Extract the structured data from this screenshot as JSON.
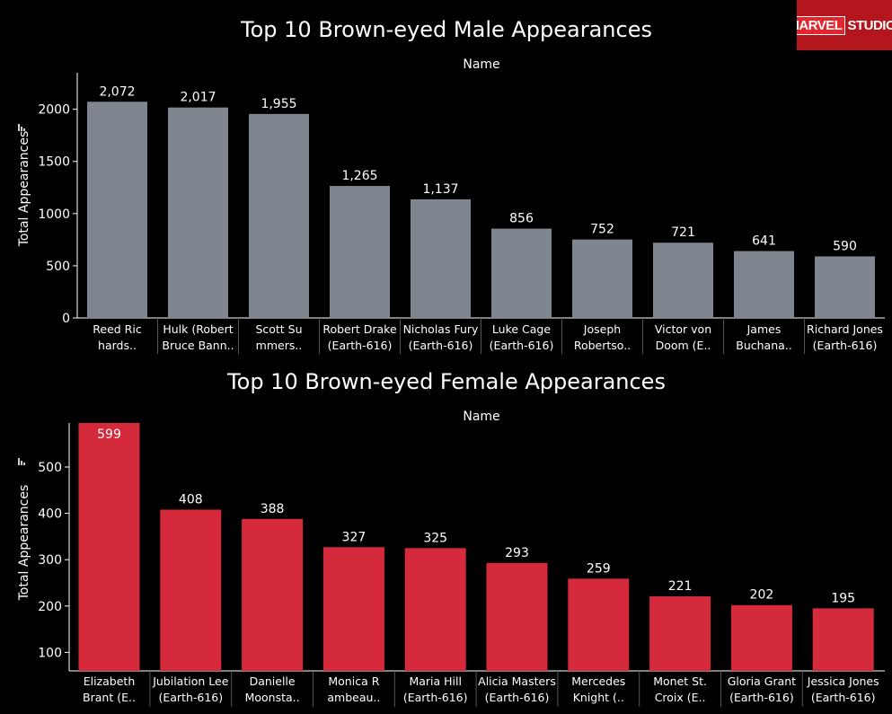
{
  "logo": {
    "word1": "MARVEL",
    "word2": "STUDIOS"
  },
  "chart_data": [
    {
      "type": "bar",
      "title": "Top 10 Brown-eyed Male Appearances",
      "column_header": "Name",
      "ylabel": "Total Appearances",
      "ylim": [
        0,
        2350
      ],
      "yticks": [
        0,
        500,
        1000,
        1500,
        2000
      ],
      "color": "#7f8690",
      "categories": [
        [
          "Reed Ric",
          "hards.."
        ],
        [
          "Hulk (Robert",
          "Bruce Bann.."
        ],
        [
          "Scott Su",
          "mmers.."
        ],
        [
          "Robert Drake",
          "(Earth-616)"
        ],
        [
          "Nicholas Fury",
          "(Earth-616)"
        ],
        [
          "Luke Cage",
          "(Earth-616)"
        ],
        [
          "Joseph",
          "Robertso.."
        ],
        [
          "Victor von",
          "Doom (E.."
        ],
        [
          "James",
          "Buchana.."
        ],
        [
          "Richard Jones",
          "(Earth-616)"
        ]
      ],
      "values": [
        2072,
        2017,
        1955,
        1265,
        1137,
        856,
        752,
        721,
        641,
        590
      ],
      "value_labels": [
        "2,072",
        "2,017",
        "1,955",
        "1,265",
        "1,137",
        "856",
        "752",
        "721",
        "641",
        "590"
      ]
    },
    {
      "type": "bar",
      "title": "Top 10 Brown-eyed Female Appearances",
      "column_header": "Name",
      "ylabel": "Total Appearances",
      "ylim": [
        60,
        595
      ],
      "yticks": [
        100,
        200,
        300,
        400,
        500
      ],
      "color": "#d42a3c",
      "categories": [
        [
          "Elizabeth",
          "Brant (E.."
        ],
        [
          "Jubilation Lee",
          "(Earth-616)"
        ],
        [
          "Danielle",
          "Moonsta.."
        ],
        [
          "Monica R",
          "ambeau.."
        ],
        [
          "Maria Hill",
          "(Earth-616)"
        ],
        [
          "Alicia Masters",
          "(Earth-616)"
        ],
        [
          "Mercedes",
          "Knight (.."
        ],
        [
          "Monet St.",
          "Croix (E.."
        ],
        [
          "Gloria Grant",
          "(Earth-616)"
        ],
        [
          "Jessica Jones",
          "(Earth-616)"
        ]
      ],
      "values": [
        599,
        408,
        388,
        327,
        325,
        293,
        259,
        221,
        202,
        195
      ],
      "value_labels": [
        "599",
        "408",
        "388",
        "327",
        "325",
        "293",
        "259",
        "221",
        "202",
        "195"
      ]
    }
  ]
}
